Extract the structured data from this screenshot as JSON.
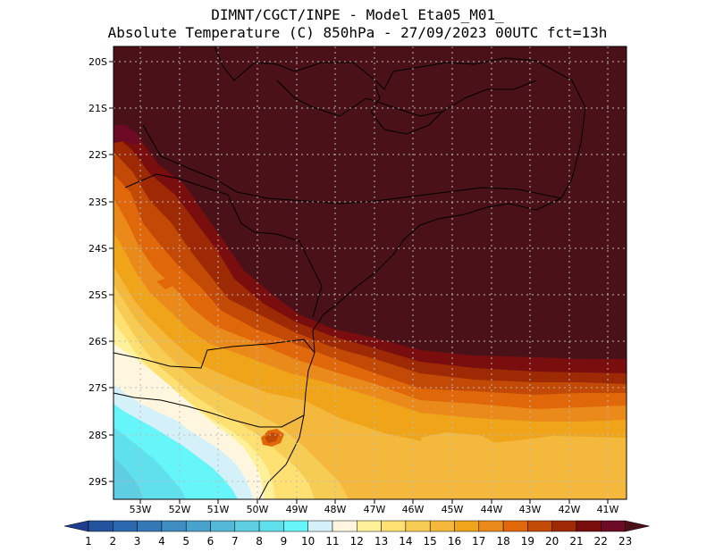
{
  "header": {
    "line1": "DIMNT/CGCT/INPE -  Model Eta05_M01_",
    "line2": "Absolute Temperature (C) 850hPa -  27/09/2023 00UTC fct=13h"
  },
  "chart_data": {
    "type": "map",
    "title": "Absolute Temperature (C) 850hPa",
    "model": "Eta05_M01_",
    "source": "DIMNT/CGCT/INPE",
    "valid": "27/09/2023 00UTC",
    "forecast": "fct=13h",
    "lon_range": [
      -54,
      -40.5
    ],
    "lat_range": [
      -29.4,
      -19.7
    ],
    "lon_ticks": [
      "53W",
      "52W",
      "51W",
      "50W",
      "49W",
      "48W",
      "47W",
      "46W",
      "45W",
      "44W",
      "43W",
      "42W",
      "41W"
    ],
    "lat_ticks": [
      "20S",
      "21S",
      "22S",
      "23S",
      "24S",
      "25S",
      "26S",
      "27S",
      "28S",
      "29S"
    ],
    "colorbar_levels": [
      1,
      2,
      3,
      4,
      5,
      6,
      7,
      8,
      9,
      10,
      11,
      12,
      13,
      14,
      15,
      16,
      17,
      18,
      19,
      20,
      21,
      22,
      23
    ],
    "colorbar_colors": [
      "#1f3c8f",
      "#24539e",
      "#2b68ae",
      "#3478b6",
      "#3e8cc2",
      "#48a2cd",
      "#55b8d8",
      "#5fcde2",
      "#5fe0ec",
      "#66f5f9",
      "#d4f1f9",
      "#fff6e0",
      "#fff199",
      "#ffe072",
      "#f7cc55",
      "#f4b83c",
      "#f0a41a",
      "#ea8a1a",
      "#e0680b",
      "#c34a06",
      "#9e2a05",
      "#7a0e0e",
      "#6d0a25",
      "#4a1218"
    ]
  }
}
